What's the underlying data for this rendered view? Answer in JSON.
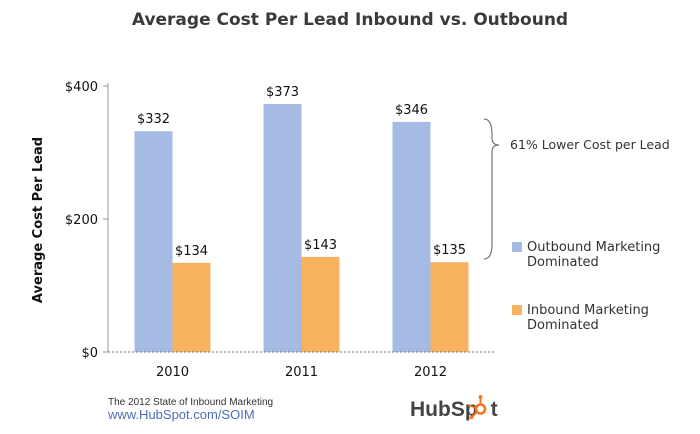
{
  "chart_data": {
    "type": "bar",
    "title": "Average Cost Per Lead Inbound vs. Outbound",
    "xlabel": "",
    "ylabel": "Average Cost Per Lead",
    "categories": [
      "2010",
      "2011",
      "2012"
    ],
    "series": [
      {
        "name": "Outbound Marketing Dominated",
        "values": [
          332,
          373,
          346
        ],
        "labels": [
          "$332",
          "$373",
          "$346"
        ],
        "color": "#a6bbe3"
      },
      {
        "name": "Inbound Marketing Dominated",
        "values": [
          134,
          143,
          135
        ],
        "labels": [
          "$134",
          "$143",
          "$135"
        ],
        "color": "#f7b25f"
      }
    ],
    "ylim": [
      0,
      400
    ],
    "yticks": [
      0,
      200,
      400
    ],
    "ytick_labels": [
      "$0",
      "$200",
      "$400"
    ],
    "grid": false,
    "legend": "right",
    "annotation": "61% Lower Cost per Lead"
  },
  "source": {
    "line1": "The 2012 State of Inbound Marketing",
    "line2": "www.HubSpot.com/SOIM"
  },
  "logo": {
    "text_start": "HubSp",
    "text_end": "t",
    "color_accent": "#f57722"
  }
}
